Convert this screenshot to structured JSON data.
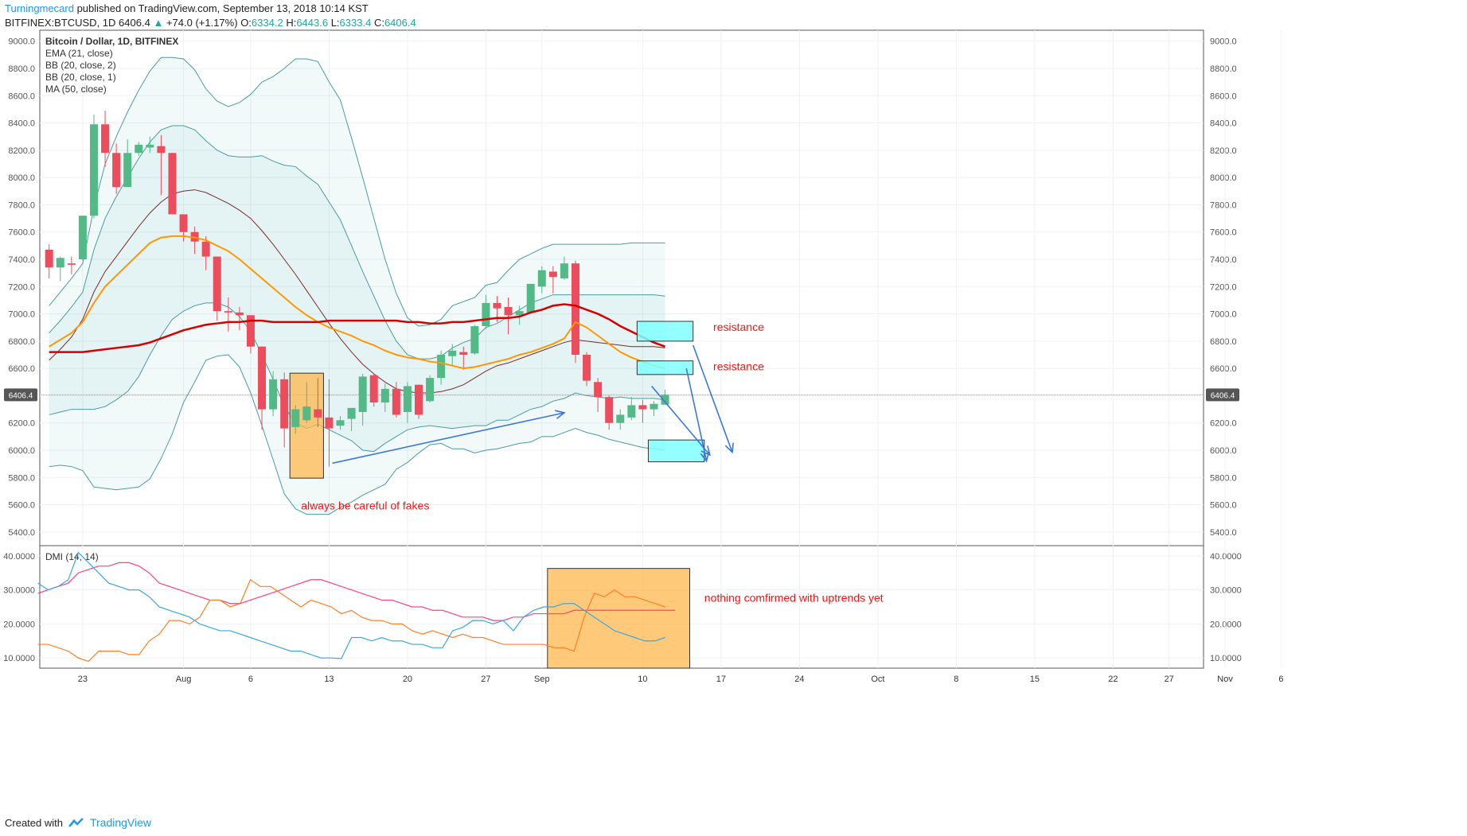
{
  "header": {
    "user": "Turningmecard",
    "published": "published on TradingView.com, September 13, 2018 10:14 KST",
    "symbol": "BITFINEX:BTCUSD, 1D",
    "last": "6406.4",
    "change": "+74.0 (+1.17%)",
    "o_label": "O:",
    "o": "6334.2",
    "h_label": "H:",
    "h": "6443.6",
    "l_label": "L:",
    "l": "6333.4",
    "c_label": "C:",
    "c": "6406.4"
  },
  "footer": {
    "created": "Created with",
    "brand": "TradingView"
  },
  "colors": {
    "up": "#53b987",
    "down": "#eb4d5c",
    "ema": "#ff9800",
    "ma": "#d50000",
    "bb": "#4a9ca0",
    "dmi_plus": "#3aa7e0",
    "dmi_minus": "#ff7f24",
    "adx": "#ff4081",
    "annot": "#ff1010",
    "arrow": "#3c78d8",
    "cyan": "#80ffff",
    "orange_box": "#ffb74d"
  },
  "legend": [
    "Bitcoin / Dollar, 1D, BITFINEX",
    "EMA (21, close)",
    "BB (20, close, 2)",
    "BB (20, close, 1)",
    "MA (50, close)"
  ],
  "dmi_label": "DMI (14, 14)",
  "price_tag": "6406.4",
  "annotations": {
    "resistance1": "resistance",
    "resistance2": "resistance",
    "fakes": "always be careful of fakes",
    "nothing": "nothing comfirmed with uptrends yet"
  },
  "chart_data": {
    "type": "candlestick",
    "title": "Bitcoin / Dollar, 1D, BITFINEX",
    "price_ylim": [
      5300,
      9080
    ],
    "price_ticks": [
      "9000.0",
      "8800.0",
      "8600.0",
      "8400.0",
      "8200.0",
      "8000.0",
      "7800.0",
      "7600.0",
      "7400.0",
      "7200.0",
      "7000.0",
      "6800.0",
      "6600.0",
      "6400.0",
      "6200.0",
      "6000.0",
      "5800.0",
      "5600.0",
      "5400.0"
    ],
    "dmi_ylim": [
      7,
      43
    ],
    "dmi_ticks": [
      "40.0000",
      "30.0000",
      "20.0000",
      "10.0000"
    ],
    "x_labels": [
      {
        "label": "23",
        "day": 3
      },
      {
        "label": "Aug",
        "day": 12
      },
      {
        "label": "6",
        "day": 18
      },
      {
        "label": "13",
        "day": 25
      },
      {
        "label": "20",
        "day": 32
      },
      {
        "label": "27",
        "day": 39
      },
      {
        "label": "Sep",
        "day": 44
      },
      {
        "label": "10",
        "day": 53
      },
      {
        "label": "17",
        "day": 60
      },
      {
        "label": "24",
        "day": 67
      },
      {
        "label": "Oct",
        "day": 74
      },
      {
        "label": "8",
        "day": 81
      },
      {
        "label": "15",
        "day": 88
      },
      {
        "label": "22",
        "day": 95
      },
      {
        "label": "27",
        "day": 100
      },
      {
        "label": "Nov",
        "day": 105
      },
      {
        "label": "6",
        "day": 110
      }
    ],
    "candles": [
      [
        7470,
        7510,
        7260,
        7340
      ],
      [
        7340,
        7420,
        7240,
        7410
      ],
      [
        7370,
        7420,
        7290,
        7360
      ],
      [
        7400,
        7720,
        7390,
        7720
      ],
      [
        7720,
        8460,
        7700,
        8390
      ],
      [
        8390,
        8490,
        8080,
        8180
      ],
      [
        8180,
        8250,
        7880,
        7930
      ],
      [
        7930,
        8280,
        7930,
        8180
      ],
      [
        8180,
        8260,
        8160,
        8240
      ],
      [
        8220,
        8300,
        8180,
        8240
      ],
      [
        8230,
        8310,
        7870,
        8180
      ],
      [
        8180,
        8180,
        7730,
        7730
      ],
      [
        7730,
        7730,
        7530,
        7600
      ],
      [
        7600,
        7640,
        7440,
        7530
      ],
      [
        7530,
        7570,
        7320,
        7420
      ],
      [
        7420,
        7420,
        6950,
        7020
      ],
      [
        7020,
        7120,
        6870,
        7010
      ],
      [
        7010,
        7050,
        6880,
        6990
      ],
      [
        6990,
        6990,
        6710,
        6760
      ],
      [
        6760,
        6760,
        6150,
        6300
      ],
      [
        6300,
        6580,
        6250,
        6520
      ],
      [
        6520,
        6570,
        6020,
        6160
      ],
      [
        6170,
        6330,
        6120,
        6300
      ],
      [
        6220,
        6500,
        6200,
        6320
      ],
      [
        6300,
        6530,
        6170,
        6240
      ],
      [
        6240,
        6520,
        5880,
        6160
      ],
      [
        6180,
        6250,
        6150,
        6220
      ],
      [
        6230,
        6300,
        6140,
        6310
      ],
      [
        6280,
        6560,
        6180,
        6540
      ],
      [
        6550,
        6560,
        6320,
        6350
      ],
      [
        6350,
        6490,
        6280,
        6450
      ],
      [
        6450,
        6500,
        6240,
        6260
      ],
      [
        6280,
        6500,
        6200,
        6470
      ],
      [
        6480,
        6480,
        6230,
        6260
      ],
      [
        6360,
        6550,
        6350,
        6530
      ],
      [
        6530,
        6730,
        6480,
        6700
      ],
      [
        6690,
        6780,
        6620,
        6730
      ],
      [
        6720,
        6760,
        6590,
        6700
      ],
      [
        6710,
        6920,
        6700,
        6910
      ],
      [
        6910,
        7140,
        6890,
        7080
      ],
      [
        7080,
        7130,
        6940,
        7040
      ],
      [
        7050,
        7120,
        6850,
        6990
      ],
      [
        6990,
        7060,
        6920,
        7020
      ],
      [
        7010,
        7220,
        7000,
        7220
      ],
      [
        7200,
        7350,
        7150,
        7320
      ],
      [
        7310,
        7350,
        7150,
        7270
      ],
      [
        7260,
        7420,
        7250,
        7370
      ],
      [
        7370,
        7390,
        6640,
        6700
      ],
      [
        6700,
        6720,
        6470,
        6510
      ],
      [
        6500,
        6530,
        6280,
        6390
      ],
      [
        6390,
        6400,
        6150,
        6200
      ],
      [
        6200,
        6300,
        6150,
        6260
      ],
      [
        6240,
        6390,
        6220,
        6330
      ],
      [
        6330,
        6370,
        6200,
        6300
      ],
      [
        6300,
        6360,
        6250,
        6340
      ],
      [
        6334,
        6444,
        6333,
        6406
      ]
    ],
    "ema21": [
      6760,
      6810,
      6860,
      6940,
      7080,
      7200,
      7280,
      7360,
      7440,
      7520,
      7560,
      7570,
      7570,
      7560,
      7540,
      7500,
      7460,
      7400,
      7330,
      7260,
      7190,
      7120,
      7050,
      6990,
      6940,
      6900,
      6870,
      6840,
      6800,
      6770,
      6730,
      6700,
      6680,
      6670,
      6650,
      6640,
      6620,
      6600,
      6610,
      6630,
      6650,
      6670,
      6700,
      6720,
      6750,
      6780,
      6820,
      6940,
      6900,
      6840,
      6780,
      6720,
      6680,
      6650,
      6620,
      6600
    ],
    "ma50": [
      6720,
      6720,
      6720,
      6720,
      6730,
      6740,
      6750,
      6760,
      6770,
      6790,
      6820,
      6850,
      6880,
      6900,
      6920,
      6930,
      6940,
      6940,
      6950,
      6950,
      6940,
      6940,
      6940,
      6940,
      6940,
      6950,
      6950,
      6950,
      6950,
      6950,
      6950,
      6950,
      6940,
      6940,
      6930,
      6930,
      6940,
      6940,
      6950,
      6960,
      6970,
      6970,
      6980,
      7010,
      7030,
      7060,
      7070,
      7060,
      7030,
      7000,
      6960,
      6910,
      6870,
      6830,
      6790,
      6760
    ],
    "bb_basis": [
      6660,
      6740,
      6830,
      6960,
      7160,
      7310,
      7420,
      7530,
      7640,
      7740,
      7820,
      7880,
      7900,
      7910,
      7890,
      7850,
      7810,
      7760,
      7700,
      7610,
      7510,
      7400,
      7290,
      7170,
      7050,
      6930,
      6820,
      6720,
      6630,
      6560,
      6500,
      6450,
      6430,
      6420,
      6420,
      6430,
      6450,
      6480,
      6530,
      6580,
      6620,
      6640,
      6670,
      6700,
      6730,
      6760,
      6790,
      6810,
      6800,
      6790,
      6780,
      6770,
      6760,
      6760,
      6760,
      6750
    ],
    "bb_upper2": [
      7060,
      7160,
      7260,
      7370,
      7780,
      8100,
      8300,
      8480,
      8640,
      8780,
      8880,
      8880,
      8870,
      8790,
      8650,
      8560,
      8520,
      8550,
      8610,
      8700,
      8740,
      8800,
      8870,
      8870,
      8850,
      8700,
      8570,
      8290,
      8000,
      7700,
      7400,
      7150,
      6970,
      6910,
      6920,
      6960,
      7060,
      7090,
      7120,
      7210,
      7230,
      7320,
      7400,
      7440,
      7480,
      7510,
      7510,
      7510,
      7510,
      7510,
      7510,
      7510,
      7520,
      7520,
      7520,
      7520
    ],
    "bb_upper1": [
      6860,
      6950,
      7050,
      7160,
      7470,
      7700,
      7860,
      8000,
      8140,
      8260,
      8350,
      8380,
      8380,
      8350,
      8270,
      8200,
      8160,
      8150,
      8150,
      8160,
      8120,
      8090,
      8080,
      8010,
      7950,
      7820,
      7690,
      7500,
      7310,
      7130,
      6950,
      6800,
      6700,
      6670,
      6670,
      6690,
      6750,
      6790,
      6820,
      6900,
      6930,
      6980,
      7030,
      7080,
      7110,
      7140,
      7140,
      7140,
      7140,
      7140,
      7140,
      7140,
      7140,
      7140,
      7140,
      7130
    ],
    "bb_lower1": [
      6260,
      6280,
      6300,
      6300,
      6300,
      6320,
      6370,
      6430,
      6540,
      6700,
      6840,
      6960,
      7020,
      7060,
      7080,
      7080,
      7050,
      6980,
      6870,
      6700,
      6520,
      6320,
      6200,
      6160,
      6190,
      6150,
      6110,
      6070,
      6000,
      5990,
      6050,
      6100,
      6150,
      6170,
      6180,
      6170,
      6160,
      6170,
      6180,
      6180,
      6220,
      6220,
      6260,
      6300,
      6320,
      6360,
      6380,
      6420,
      6400,
      6390,
      6380,
      6390,
      6380,
      6380,
      6380,
      6370
    ],
    "bb_lower2": [
      5880,
      5890,
      5880,
      5850,
      5730,
      5720,
      5710,
      5720,
      5730,
      5790,
      5940,
      6120,
      6350,
      6500,
      6660,
      6690,
      6700,
      6610,
      6420,
      6180,
      5930,
      5680,
      5570,
      5530,
      5530,
      5530,
      5580,
      5620,
      5670,
      5710,
      5750,
      5860,
      5910,
      5980,
      6040,
      6050,
      6010,
      6010,
      5980,
      6000,
      6010,
      6030,
      6050,
      6060,
      6100,
      6100,
      6130,
      6160,
      6130,
      6110,
      6080,
      6060,
      6040,
      6020,
      6010,
      6000
    ],
    "dmi_plus": [
      32,
      30,
      31,
      33,
      41,
      38,
      35,
      32,
      31,
      30,
      30,
      28,
      25,
      24,
      23,
      22,
      20,
      19,
      18,
      18,
      17,
      16,
      15,
      14,
      13,
      12,
      12,
      11,
      10,
      10,
      9.8,
      16,
      16,
      15,
      16,
      15,
      15,
      14,
      14,
      13,
      13,
      18,
      19,
      21,
      21,
      20,
      21,
      18,
      22,
      24,
      25,
      25,
      26,
      26,
      24,
      22,
      20,
      18,
      17,
      16,
      15,
      15,
      16
    ],
    "dmi_minus": [
      14,
      14,
      13,
      12,
      10,
      9,
      12,
      12,
      12,
      11,
      11,
      15,
      17,
      21,
      21,
      20,
      22,
      27,
      27,
      25,
      26,
      33,
      31,
      31,
      29,
      27,
      25,
      27,
      26,
      25,
      23,
      24,
      22,
      21,
      21,
      20,
      20,
      18,
      17,
      18,
      17,
      16,
      17,
      16,
      16,
      15,
      14,
      14,
      14,
      14,
      14,
      13,
      13,
      12,
      22,
      29,
      28,
      30,
      28,
      28,
      27,
      26,
      25
    ],
    "adx": [
      29,
      30,
      31,
      32,
      35,
      36,
      37,
      37,
      38,
      38,
      37,
      35,
      32,
      31,
      30,
      29,
      28,
      27,
      27,
      26,
      26,
      27,
      28,
      29,
      30,
      31,
      32,
      33,
      33,
      32,
      31,
      30,
      29,
      28,
      27,
      27,
      26,
      25,
      25,
      24,
      24,
      23,
      22,
      22,
      22,
      21,
      21,
      22,
      22,
      23,
      23,
      23,
      23,
      24,
      24,
      24,
      24,
      24,
      24,
      24,
      24,
      24,
      24,
      24
    ]
  }
}
